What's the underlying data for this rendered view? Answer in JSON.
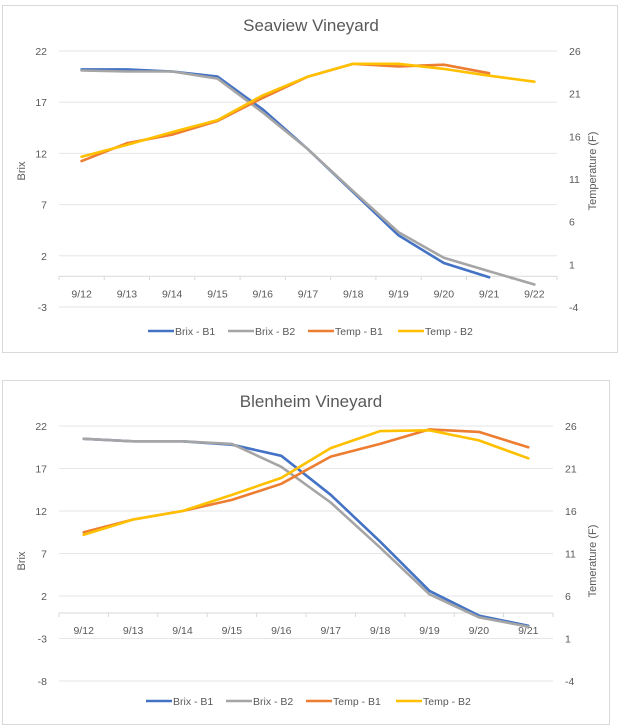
{
  "chart_data": [
    {
      "type": "line",
      "title": "Seaview Vineyard",
      "xlabel": "",
      "ylabel": "Brix",
      "y2label": "Temperature (F)",
      "categories": [
        "9/12",
        "9/13",
        "9/14",
        "9/15",
        "9/16",
        "9/17",
        "9/18",
        "9/19",
        "9/20",
        "9/21",
        "9/22"
      ],
      "ylim": [
        -3,
        22
      ],
      "yticks": [
        22,
        17,
        12,
        7,
        2,
        -3
      ],
      "y2lim": [
        -4,
        26
      ],
      "y2ticks": [
        26,
        21,
        16,
        11,
        6,
        1,
        -4
      ],
      "grid": true,
      "legend": "bottom",
      "series": [
        {
          "name": "Brix - B1",
          "axis": "left",
          "color": "#4472c4",
          "values": [
            20.2,
            20.2,
            20.0,
            19.5,
            16.3,
            12.4,
            8.2,
            4.0,
            1.3,
            -0.1,
            null
          ]
        },
        {
          "name": "Brix - B2",
          "axis": "left",
          "color": "#a5a5a5",
          "values": [
            20.1,
            20.0,
            20.0,
            19.3,
            16.0,
            12.4,
            8.3,
            4.3,
            1.8,
            0.5,
            -0.8
          ]
        },
        {
          "name": "Temp - B1",
          "axis": "right",
          "color": "#ed7d31",
          "values": [
            13.1,
            15.2,
            16.2,
            17.8,
            20.5,
            23.0,
            24.5,
            24.2,
            24.4,
            23.4,
            null
          ]
        },
        {
          "name": "Temp - B2",
          "axis": "right",
          "color": "#ffc000",
          "values": [
            13.6,
            15.0,
            16.5,
            17.9,
            20.8,
            23.0,
            24.5,
            24.5,
            23.9,
            23.1,
            22.4
          ]
        }
      ]
    },
    {
      "type": "line",
      "title": "Blenheim Vineyard",
      "xlabel": "",
      "ylabel": "Brix",
      "y2label": "Temerature (F)",
      "categories": [
        "9/12",
        "9/13",
        "9/14",
        "9/15",
        "9/16",
        "9/17",
        "9/18",
        "9/19",
        "9/20",
        "9/21"
      ],
      "ylim": [
        -8,
        22
      ],
      "yticks": [
        22,
        17,
        12,
        7,
        2,
        -3,
        -8
      ],
      "y2lim": [
        -4,
        26
      ],
      "y2ticks": [
        26,
        21,
        16,
        11,
        6,
        1,
        -4
      ],
      "grid": true,
      "legend": "bottom",
      "series": [
        {
          "name": "Brix - B1",
          "axis": "left",
          "color": "#4472c4",
          "values": [
            20.5,
            20.2,
            20.2,
            19.8,
            18.5,
            13.9,
            8.4,
            2.6,
            -0.3,
            -1.5
          ]
        },
        {
          "name": "Brix - B2",
          "axis": "left",
          "color": "#a5a5a5",
          "values": [
            20.5,
            20.2,
            20.2,
            19.9,
            17.2,
            13.0,
            7.7,
            2.2,
            -0.5,
            -1.6
          ]
        },
        {
          "name": "Temp - B1",
          "axis": "right",
          "color": "#ed7d31",
          "values": [
            13.5,
            15.0,
            16.0,
            17.3,
            19.2,
            22.4,
            23.9,
            25.6,
            25.3,
            23.5
          ]
        },
        {
          "name": "Temp - B2",
          "axis": "right",
          "color": "#ffc000",
          "values": [
            13.2,
            15.0,
            16.0,
            17.9,
            19.9,
            23.4,
            25.4,
            25.5,
            24.3,
            22.2
          ]
        }
      ]
    }
  ]
}
